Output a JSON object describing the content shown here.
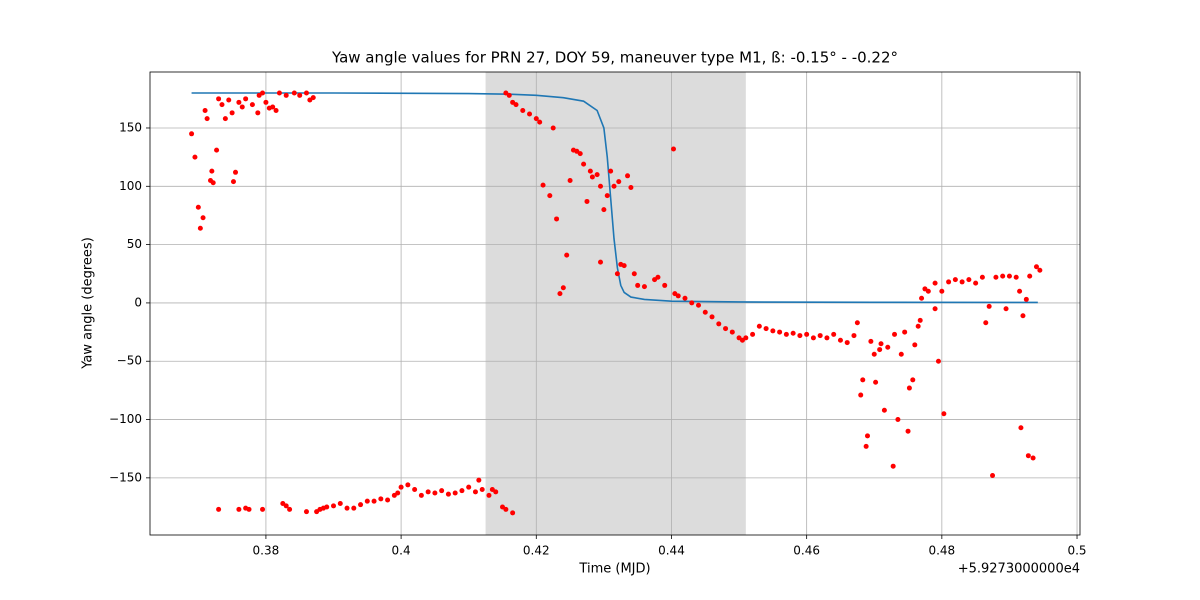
{
  "chart_data": {
    "type": "scatter",
    "title": "Yaw angle values for PRN 27, DOY 59, maneuver type M1, ß: -0.15° - -0.22°",
    "x_label": "Time (MJD)",
    "y_label": "Yaw angle (degrees)",
    "x_offset_label": "+5.9273000000e4",
    "xlim": [
      0.36285,
      0.50044
    ],
    "ylim": [
      -199,
      198
    ],
    "xticks": [
      0.38,
      0.4,
      0.42,
      0.44,
      0.46,
      0.48,
      0.5
    ],
    "yticks": [
      {
        "value": -150,
        "label": "−150"
      },
      {
        "value": -100,
        "label": "−100"
      },
      {
        "value": -50,
        "label": "−50"
      },
      0,
      50,
      100,
      150
    ],
    "grid": true,
    "shaded_span": [
      0.4125,
      0.451
    ],
    "shaded_color": "#dcdcdc",
    "series": [
      {
        "kind": "line",
        "color": "#1f77b4",
        "x": [
          0.369,
          0.39,
          0.41,
          0.416,
          0.42,
          0.424,
          0.427,
          0.429,
          0.43,
          0.4305,
          0.431,
          0.4315,
          0.432,
          0.4325,
          0.433,
          0.434,
          0.436,
          0.44,
          0.45,
          0.47,
          0.4942
        ],
        "values": [
          180,
          180,
          179.5,
          179,
          178,
          176,
          173,
          165,
          150,
          125,
          90,
          55,
          30,
          15,
          9,
          5,
          3,
          1.5,
          0.8,
          0.5,
          0.4
        ]
      },
      {
        "kind": "scatter",
        "color": "#ff0000",
        "x": [
          0.369,
          0.3695,
          0.37,
          0.3703,
          0.3707,
          0.371,
          0.3713,
          0.3718,
          0.372,
          0.3722,
          0.3727,
          0.373,
          0.3735,
          0.374,
          0.3745,
          0.375,
          0.3752,
          0.3755,
          0.376,
          0.3765,
          0.377,
          0.378,
          0.3788,
          0.379,
          0.3795,
          0.38,
          0.3805,
          0.381,
          0.3815,
          0.382,
          0.383,
          0.3842,
          0.385,
          0.386,
          0.3865,
          0.387,
          0.373,
          0.376,
          0.377,
          0.3775,
          0.3795,
          0.3825,
          0.383,
          0.3835,
          0.386,
          0.3875,
          0.388,
          0.3885,
          0.389,
          0.39,
          0.391,
          0.392,
          0.393,
          0.394,
          0.395,
          0.396,
          0.397,
          0.398,
          0.399,
          0.3995,
          0.4,
          0.401,
          0.402,
          0.403,
          0.404,
          0.405,
          0.406,
          0.407,
          0.408,
          0.409,
          0.41,
          0.411,
          0.4115,
          0.412,
          0.413,
          0.4135,
          0.414,
          0.415,
          0.4155,
          0.4165,
          0.4155,
          0.416,
          0.4165,
          0.417,
          0.418,
          0.419,
          0.42,
          0.4205,
          0.421,
          0.422,
          0.4225,
          0.423,
          0.4235,
          0.424,
          0.4245,
          0.425,
          0.4255,
          0.426,
          0.4265,
          0.427,
          0.4275,
          0.428,
          0.4283,
          0.429,
          0.4295,
          0.4295,
          0.43,
          0.4305,
          0.431,
          0.4315,
          0.432,
          0.4322,
          0.4325,
          0.433,
          0.4335,
          0.434,
          0.4345,
          0.435,
          0.436,
          0.4375,
          0.438,
          0.439,
          0.4403,
          0.4405,
          0.441,
          0.442,
          0.443,
          0.444,
          0.445,
          0.446,
          0.447,
          0.448,
          0.449,
          0.45,
          0.4505,
          0.451,
          0.452,
          0.453,
          0.454,
          0.455,
          0.456,
          0.457,
          0.458,
          0.459,
          0.46,
          0.461,
          0.462,
          0.463,
          0.464,
          0.465,
          0.466,
          0.467,
          0.4675,
          0.468,
          0.4683,
          0.4688,
          0.469,
          0.4695,
          0.47,
          0.4702,
          0.4708,
          0.471,
          0.4715,
          0.472,
          0.4728,
          0.473,
          0.4735,
          0.474,
          0.4745,
          0.475,
          0.4752,
          0.4757,
          0.476,
          0.4765,
          0.4768,
          0.477,
          0.4775,
          0.478,
          0.479,
          0.479,
          0.4795,
          0.4803,
          0.48,
          0.481,
          0.482,
          0.483,
          0.484,
          0.485,
          0.486,
          0.4865,
          0.487,
          0.4875,
          0.488,
          0.489,
          0.4895,
          0.49,
          0.491,
          0.4915,
          0.4917,
          0.492,
          0.4925,
          0.4928,
          0.493,
          0.4935,
          0.494,
          0.4945
        ],
        "values": [
          145,
          125,
          82,
          64,
          73,
          165,
          158,
          105,
          113,
          103,
          131,
          175,
          170,
          158,
          174,
          163,
          104,
          112,
          172,
          168,
          175,
          170,
          163,
          178,
          180,
          172,
          167,
          168,
          165,
          180,
          178,
          180,
          178,
          180,
          174,
          176,
          -177,
          -177,
          -176,
          -177,
          -177,
          -172,
          -174,
          -177,
          -179,
          -179,
          -177,
          -176,
          -175,
          -174,
          -172,
          -176,
          -176,
          -173,
          -170,
          -170,
          -168,
          -169,
          -165,
          -163,
          -158,
          -156,
          -160,
          -165,
          -162,
          -163,
          -161,
          -164,
          -163,
          -161,
          -158,
          -162,
          -152,
          -160,
          -165,
          -160,
          -162,
          -175,
          -177,
          -180,
          180,
          178,
          172,
          170,
          165,
          162,
          158,
          155,
          101,
          92,
          150,
          72,
          8,
          13,
          41,
          105,
          131,
          130,
          128,
          119,
          87,
          113,
          108,
          110,
          100,
          35,
          80,
          92,
          113,
          100,
          25,
          104,
          33,
          32,
          109,
          99,
          25,
          15,
          14,
          20,
          22,
          15,
          132,
          8,
          6,
          4,
          0,
          -2,
          -8,
          -12,
          -18,
          -22,
          -25,
          -30,
          -32,
          -30,
          -27,
          -20,
          -22,
          -24,
          -25,
          -27,
          -26,
          -28,
          -27,
          -30,
          -28,
          -30,
          -27,
          -32,
          -34,
          -28,
          -17,
          -79,
          -66,
          -123,
          -114,
          -33,
          -44,
          -68,
          -40,
          -35,
          -92,
          -38,
          -140,
          -27,
          -100,
          -44,
          -25,
          -110,
          -73,
          -66,
          -36,
          -20,
          -15,
          4,
          12,
          10,
          17,
          -5,
          -50,
          -95,
          10,
          18,
          20,
          18,
          20,
          17,
          22,
          -17,
          -3,
          -148,
          22,
          23,
          -5,
          23,
          22,
          10,
          -107,
          -11,
          3,
          -131,
          23,
          -133,
          31,
          28
        ]
      }
    ]
  }
}
